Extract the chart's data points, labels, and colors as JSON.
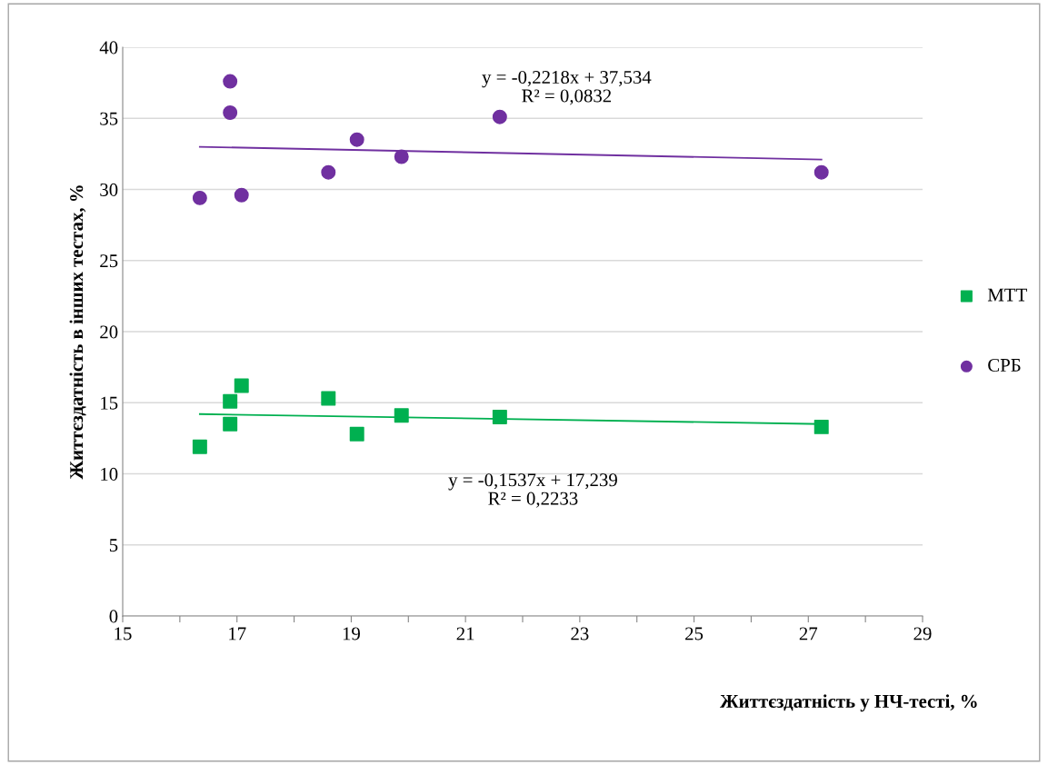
{
  "chart_data": {
    "type": "scatter",
    "xlabel": "Життєздатність у НЧ-тесті, %",
    "ylabel": "Життєздатність в інших тестах, %",
    "xlim": [
      15,
      29
    ],
    "ylim": [
      0,
      40
    ],
    "xticks": [
      15,
      {
        "value": 16,
        "label": null
      },
      17,
      {
        "value": 18,
        "label": null
      },
      19,
      {
        "value": 20,
        "label": null
      },
      21,
      {
        "value": 22,
        "label": null
      },
      23,
      {
        "value": 24,
        "label": null
      },
      25,
      {
        "value": 26,
        "label": null
      },
      27,
      {
        "value": 28,
        "label": null
      },
      29
    ],
    "yticks": [
      0,
      5,
      10,
      15,
      20,
      25,
      30,
      35,
      40
    ],
    "grid": "y",
    "legend": "right",
    "series": [
      {
        "name": "МТТ",
        "color": "#00b050",
        "marker": "square",
        "x": [
          16.35,
          16.88,
          16.88,
          17.08,
          18.6,
          19.1,
          19.88,
          21.6,
          27.23
        ],
        "values": [
          11.9,
          13.5,
          15.1,
          16.2,
          15.3,
          12.8,
          14.1,
          14.0,
          13.3
        ]
      },
      {
        "name": "СРБ",
        "color": "#7030a0",
        "marker": "circle",
        "x": [
          16.35,
          16.88,
          16.88,
          17.08,
          18.6,
          19.1,
          19.88,
          21.6,
          27.23
        ],
        "values": [
          29.4,
          37.6,
          35.4,
          29.6,
          31.2,
          33.5,
          32.3,
          35.1,
          31.2
        ]
      },
      {
        "type": "line",
        "color": "#00b050",
        "x": [
          16.35,
          27.23
        ],
        "values": [
          14.2,
          13.5
        ]
      },
      {
        "type": "line",
        "color": "#7030a0",
        "x": [
          16.35,
          27.23
        ],
        "values": [
          33.0,
          32.1
        ]
      }
    ],
    "annotations": [
      "y = -0,2218x + 37,534\nR² = 0,0832",
      "y = -0,1537x + 17,239\nR² = 0,2233"
    ]
  }
}
